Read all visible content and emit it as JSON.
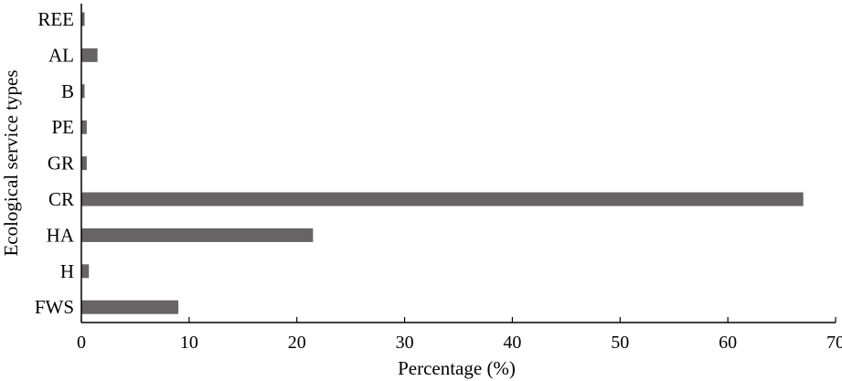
{
  "chart_data": {
    "type": "bar",
    "orientation": "horizontal",
    "categories": [
      "REE",
      "AL",
      "B",
      "PE",
      "GR",
      "CR",
      "HA",
      "H",
      "FWS"
    ],
    "values": [
      0.3,
      1.5,
      0.3,
      0.5,
      0.5,
      67.0,
      21.5,
      0.7,
      9.0
    ],
    "xlabel": "Percentage (%)",
    "ylabel": "Ecological service types",
    "xlim": [
      0,
      70
    ],
    "xticks": [
      0,
      10,
      20,
      30,
      40,
      50,
      60,
      70
    ],
    "bar_color": "#676466",
    "grid": false,
    "legend": "none"
  }
}
